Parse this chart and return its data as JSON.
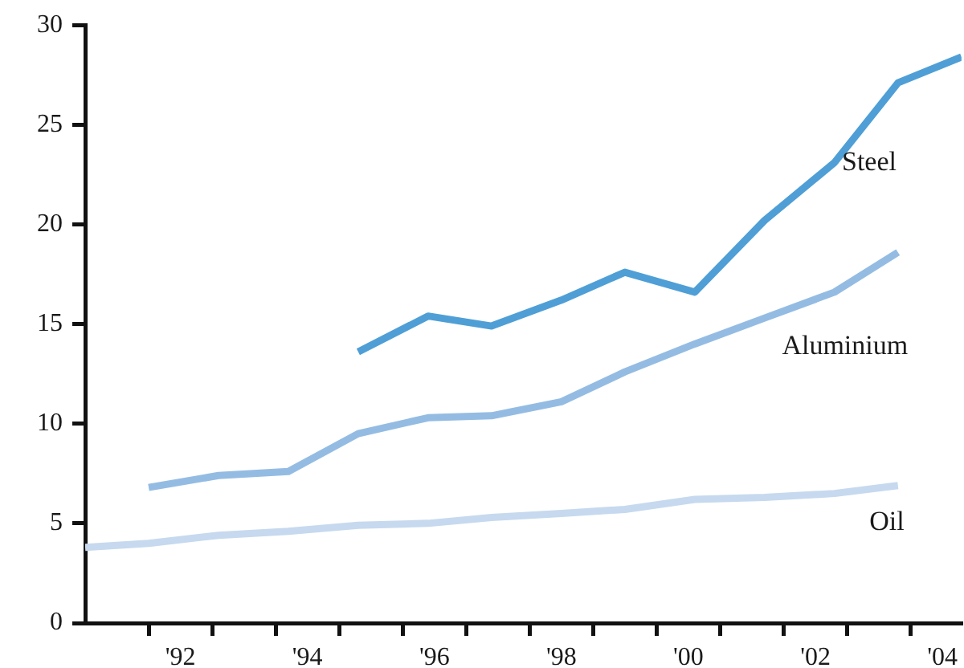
{
  "chart_data": {
    "type": "line",
    "series": [
      {
        "name": "Steel",
        "color": "#4f9fd6",
        "x": [
          1994.8,
          1995.9,
          1996.9,
          1998.0,
          1999.0,
          2000.1,
          2001.2,
          2002.3,
          2003.3,
          2004.3
        ],
        "values": [
          13.6,
          15.4,
          14.9,
          16.2,
          17.6,
          16.6,
          20.2,
          23.1,
          27.1,
          28.4
        ]
      },
      {
        "name": "Aluminium",
        "color": "#94bce3",
        "x": [
          1991.5,
          1992.6,
          1993.7,
          1994.8,
          1995.9,
          1996.9,
          1998.0,
          1999.0,
          2000.1,
          2001.2,
          2002.3,
          2003.3
        ],
        "values": [
          6.8,
          7.4,
          7.6,
          9.5,
          10.3,
          10.4,
          11.1,
          12.6,
          14.0,
          15.3,
          16.6,
          18.6
        ]
      },
      {
        "name": "Oil",
        "color": "#c6d9ef",
        "x": [
          1990.5,
          1991.5,
          1992.6,
          1993.7,
          1994.8,
          1995.9,
          1996.9,
          1998.0,
          1999.0,
          2000.1,
          2001.2,
          2002.3,
          2003.3
        ],
        "values": [
          3.8,
          4.0,
          4.4,
          4.6,
          4.9,
          5.0,
          5.3,
          5.5,
          5.7,
          6.2,
          6.3,
          6.5,
          6.9
        ]
      }
    ],
    "xlim": [
      1990.5,
      2004.3
    ],
    "xticks": [
      {
        "value": 1991.5,
        "label": null
      },
      {
        "value": 1992,
        "label": "'92"
      },
      {
        "value": 1992.5,
        "label": null
      },
      {
        "value": 1993.5,
        "label": null
      },
      {
        "value": 1994,
        "label": "'94"
      },
      {
        "value": 1994.5,
        "label": null
      },
      {
        "value": 1995.5,
        "label": null
      },
      {
        "value": 1996,
        "label": "'96"
      },
      {
        "value": 1996.5,
        "label": null
      },
      {
        "value": 1997.5,
        "label": null
      },
      {
        "value": 1998,
        "label": "'98"
      },
      {
        "value": 1998.5,
        "label": null
      },
      {
        "value": 1999.5,
        "label": null
      },
      {
        "value": 2000,
        "label": "'00"
      },
      {
        "value": 2000.5,
        "label": null
      },
      {
        "value": 2001.5,
        "label": null
      },
      {
        "value": 2002,
        "label": "'02"
      },
      {
        "value": 2002.5,
        "label": null
      },
      {
        "value": 2003.5,
        "label": null
      },
      {
        "value": 2004,
        "label": "'04"
      }
    ],
    "ylim": [
      0,
      30
    ],
    "yticks": [
      0,
      5,
      10,
      15,
      20,
      25,
      30
    ],
    "grid": false,
    "legend": false,
    "marker": "none",
    "line_style": "solid"
  }
}
